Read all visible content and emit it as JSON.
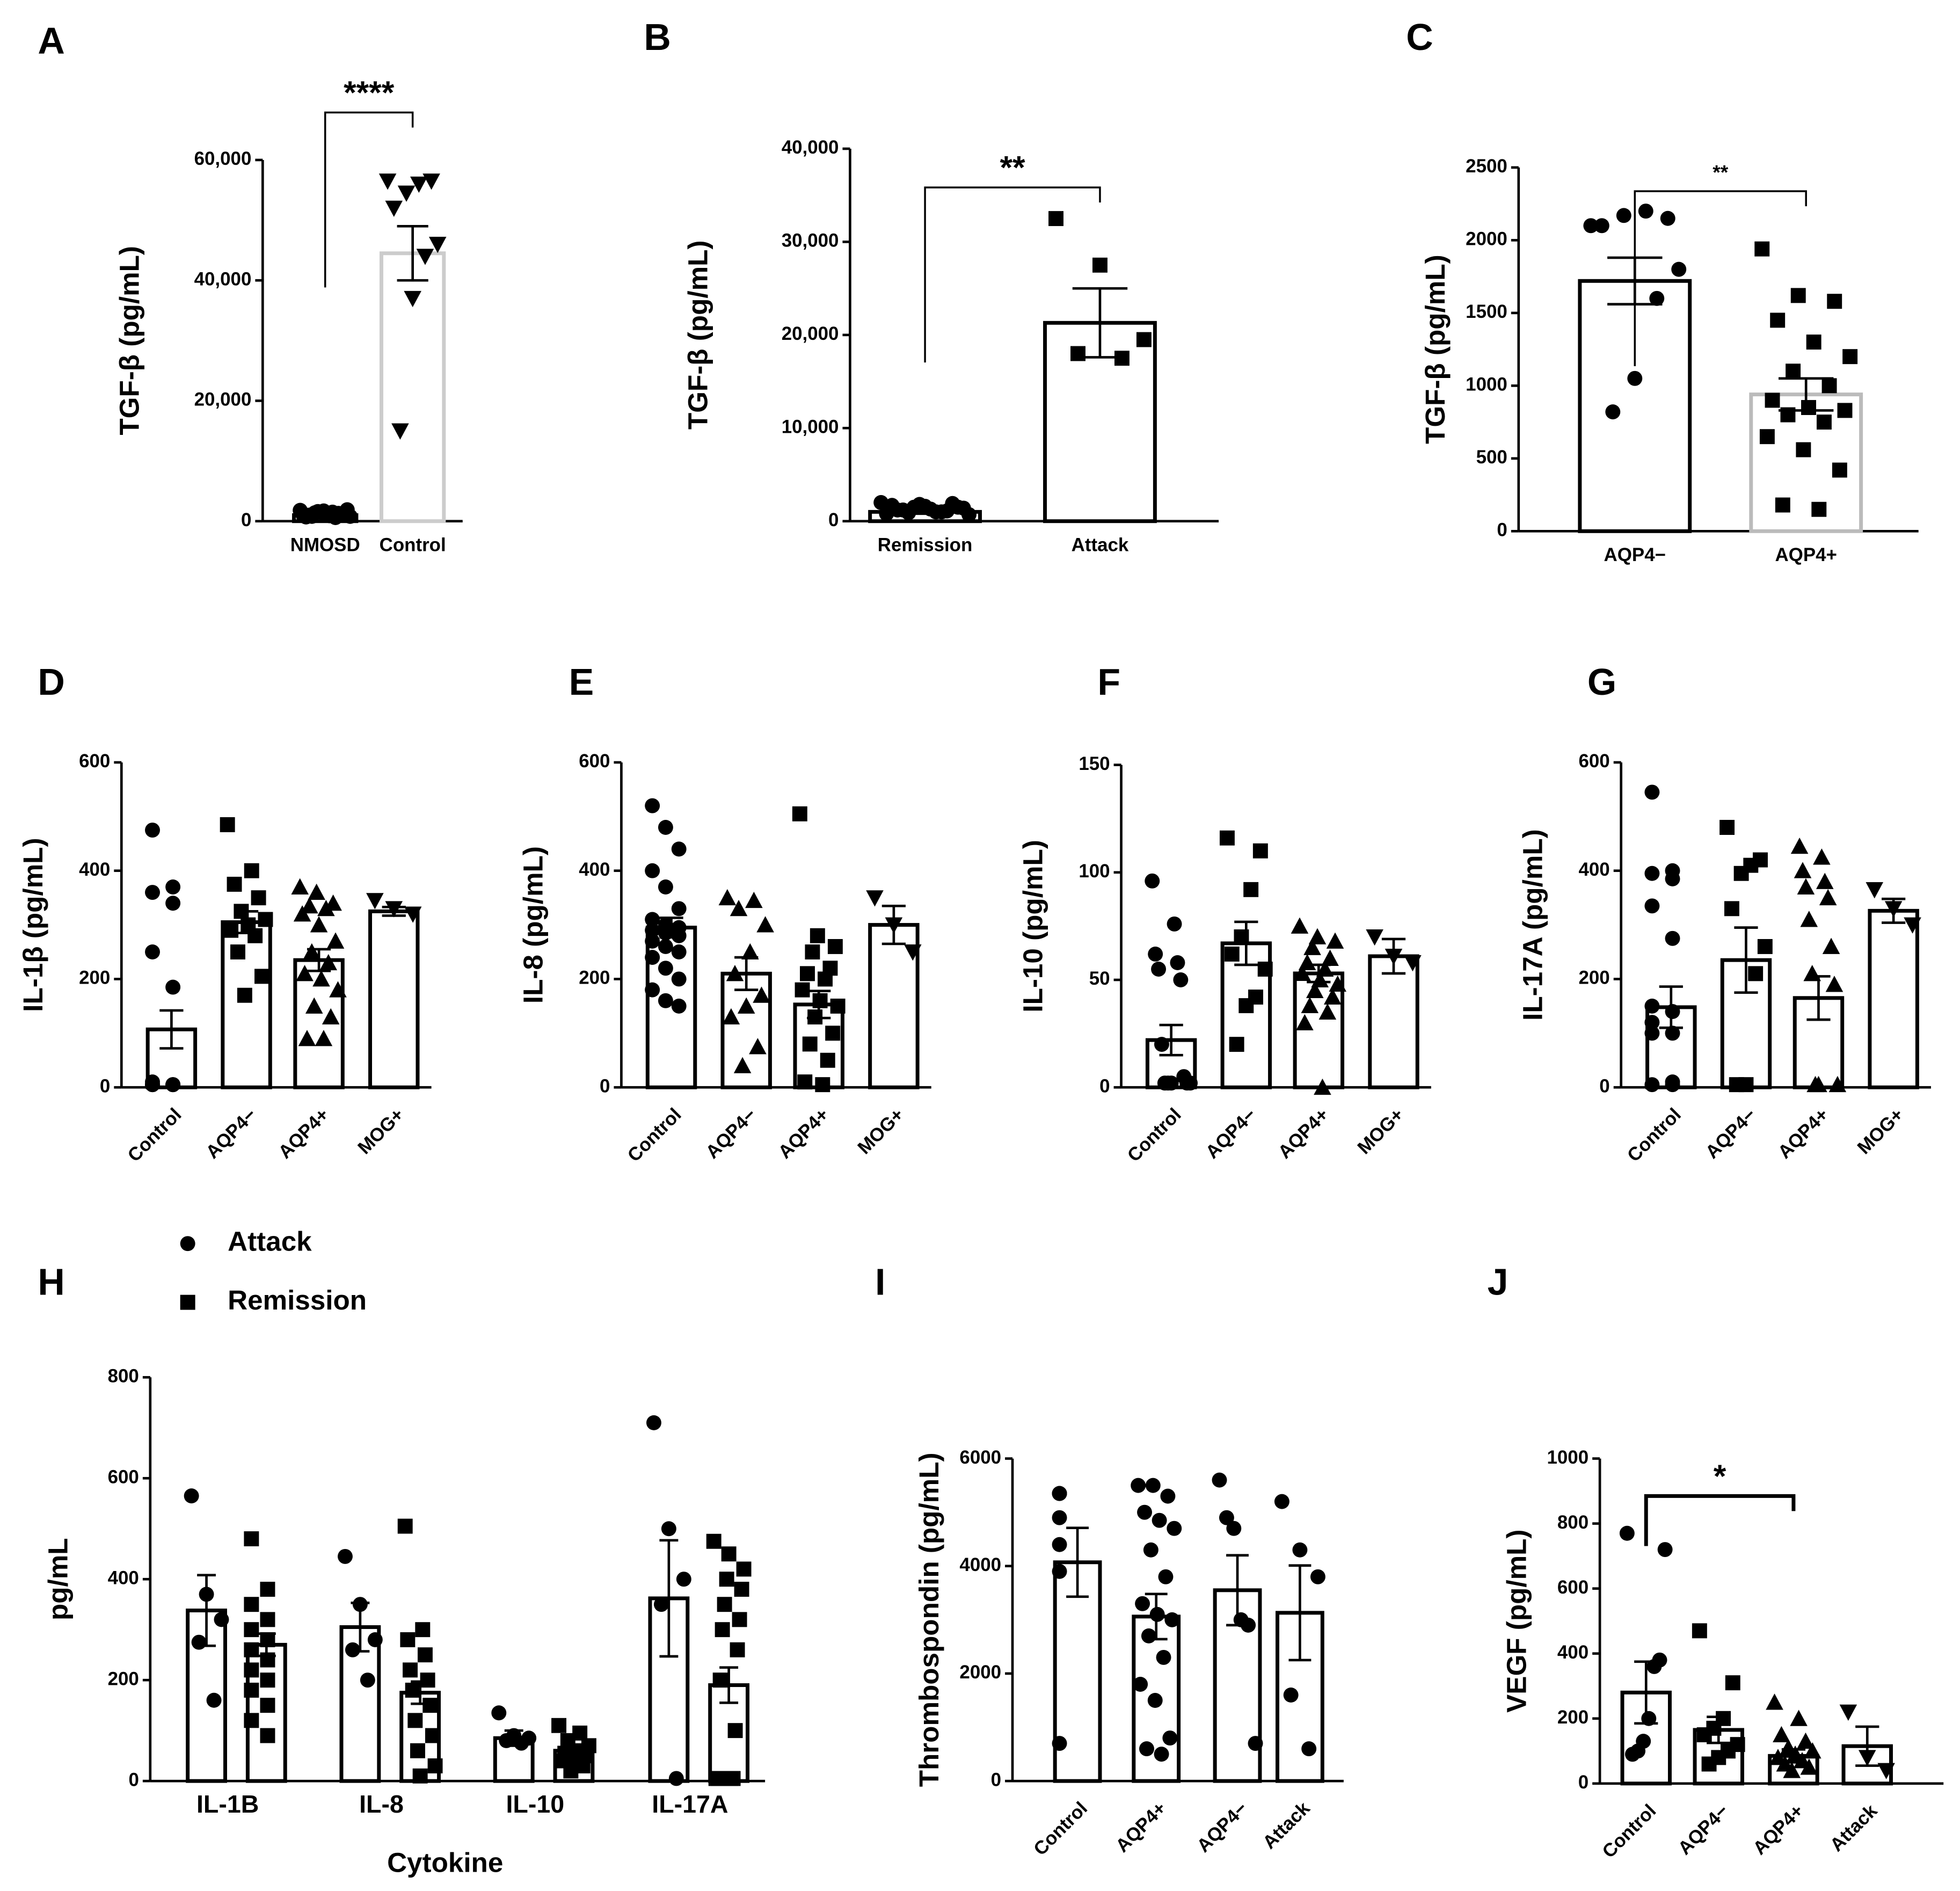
{
  "chart_data": [
    {
      "type": "bar",
      "label": "A",
      "ylabel": "TGF-β (pg/mL)",
      "annotation": "****",
      "categories": [
        "NMOSD",
        "Control"
      ],
      "edge_colors": [
        "#000",
        "#cccccc"
      ],
      "ylim": [
        0,
        60000
      ],
      "yticks": [
        0,
        {
          "value": 20000,
          "label": "20,000"
        },
        {
          "value": 40000,
          "label": "40,000"
        },
        {
          "value": 60000,
          "label": "60,000"
        }
      ],
      "series": [
        {
          "values": [
            1000,
            44500
          ],
          "errors": [
            300,
            4500
          ],
          "markers": [
            "circle",
            "tri-down"
          ],
          "points": [
            [
              1800,
              1500,
              1200,
              1000,
              900,
              800,
              1600,
              1300,
              700,
              1100,
              1900,
              1400,
              600,
              1000,
              1700,
              1200,
              800,
              1500
            ],
            [
              56500,
              56500,
              56000,
              54500,
              52000,
              46000,
              44000,
              37000,
              15000
            ]
          ]
        }
      ]
    },
    {
      "type": "bar",
      "label": "B",
      "ylabel": "TGF-β (pg/mL)",
      "annotation": "**",
      "categories": [
        "Remission",
        "Attack"
      ],
      "edge_colors": [
        "#000",
        "#000"
      ],
      "ylim": [
        0,
        40000
      ],
      "yticks": [
        0,
        {
          "value": 10000,
          "label": "10,000"
        },
        {
          "value": 20000,
          "label": "20,000"
        },
        {
          "value": 30000,
          "label": "30,000"
        },
        {
          "value": 40000,
          "label": "40,000"
        }
      ],
      "series": [
        {
          "values": [
            1000,
            21300
          ],
          "errors": [
            200,
            3700
          ],
          "markers": [
            "circle",
            "square"
          ],
          "points": [
            [
              2000,
              1800,
              1500,
              1200,
              1000,
              800,
              1600,
              1400,
              900,
              1100,
              1700,
              1300,
              700,
              1500,
              1900,
              1200,
              1000
            ],
            [
              32500,
              27500,
              19500,
              18000,
              17500
            ]
          ]
        }
      ]
    },
    {
      "type": "bar",
      "label": "C",
      "ylabel": "TGF-β (pg/mL)",
      "annotation": "**",
      "categories": [
        "AQP4−",
        "AQP4+"
      ],
      "edge_colors": [
        "#000",
        "#bbbbbb"
      ],
      "ylim": [
        0,
        2500
      ],
      "yticks": [
        0,
        500,
        1000,
        1500,
        2000,
        2500
      ],
      "series": [
        {
          "values": [
            1720,
            940
          ],
          "errors": [
            160,
            110
          ],
          "markers": [
            "circle",
            "square"
          ],
          "points": [
            [
              2100,
              2150,
              2200,
              2170,
              2100,
              1800,
              1600,
              1050,
              820
            ],
            [
              1940,
              1620,
              1580,
              1450,
              1300,
              1200,
              1100,
              1000,
              900,
              850,
              830,
              800,
              750,
              650,
              560,
              420,
              180,
              150
            ]
          ]
        }
      ]
    },
    {
      "type": "bar",
      "label": "D",
      "ylabel": "IL-1β (pg/mL)",
      "categories": [
        "Control",
        "AQP4−",
        "AQP4+",
        "MOG+"
      ],
      "ylim": [
        0,
        600
      ],
      "yticks": [
        0,
        200,
        400,
        600
      ],
      "series": [
        {
          "values": [
            107,
            305,
            235,
            325
          ],
          "errors": [
            35,
            20,
            20,
            8
          ],
          "markers": [
            "circle",
            "square",
            "triangle",
            "tri-down"
          ],
          "points": [
            [
              475,
              370,
              360,
              340,
              250,
              185,
              10,
              5,
              5,
              5,
              5,
              5,
              5,
              5
            ],
            [
              485,
              400,
              375,
              350,
              325,
              310,
              300,
              290,
              280,
              250,
              205,
              170
            ],
            [
              370,
              360,
              340,
              335,
              330,
              320,
              300,
              270,
              250,
              230,
              210,
              200,
              180,
              150,
              130,
              90,
              90
            ],
            [
              345,
              330,
              320
            ]
          ]
        }
      ]
    },
    {
      "type": "bar",
      "label": "E",
      "ylabel": "IL-8 (pg/mL)",
      "categories": [
        "Control",
        "AQP4−",
        "AQP4+",
        "MOG+"
      ],
      "ylim": [
        0,
        600
      ],
      "yticks": [
        0,
        200,
        400,
        600
      ],
      "series": [
        {
          "values": [
            295,
            210,
            153,
            300
          ],
          "errors": [
            18,
            30,
            25,
            35
          ],
          "markers": [
            "circle",
            "triangle",
            "square",
            "tri-down"
          ],
          "points": [
            [
              520,
              480,
              440,
              400,
              370,
              330,
              310,
              300,
              295,
              290,
              285,
              280,
              270,
              260,
              250,
              240,
              220,
              200,
              180,
              160,
              150
            ],
            [
              350,
              345,
              330,
              300,
              250,
              210,
              170,
              150,
              130,
              75,
              40
            ],
            [
              505,
              280,
              260,
              250,
              220,
              210,
              200,
              180,
              160,
              150,
              130,
              100,
              80,
              50,
              10,
              5
            ],
            [
              350,
              300,
              250
            ]
          ]
        }
      ]
    },
    {
      "type": "bar",
      "label": "F",
      "ylabel": "IL-10 (pg/mL)",
      "categories": [
        "Control",
        "AQP4−",
        "AQP4+",
        "MOG+"
      ],
      "ylim": [
        0,
        150
      ],
      "yticks": [
        0,
        50,
        100,
        150
      ],
      "series": [
        {
          "values": [
            22,
            67,
            53,
            61
          ],
          "errors": [
            7,
            10,
            4,
            8
          ],
          "markers": [
            "circle",
            "square",
            "triangle",
            "tri-down"
          ],
          "points": [
            [
              96,
              76,
              62,
              58,
              55,
              50,
              20,
              5,
              2,
              2,
              2,
              2,
              2
            ],
            [
              116,
              110,
              92,
              70,
              62,
              55,
              42,
              38,
              20
            ],
            [
              75,
              70,
              68,
              65,
              60,
              58,
              55,
              53,
              50,
              48,
              45,
              42,
              38,
              35,
              30,
              0
            ],
            [
              70,
              61,
              58
            ]
          ]
        }
      ]
    },
    {
      "type": "bar",
      "label": "G",
      "ylabel": "IL-17A (pg/mL)",
      "categories": [
        "Control",
        "AQP4−",
        "AQP4+",
        "MOG+"
      ],
      "ylim": [
        0,
        600
      ],
      "yticks": [
        0,
        200,
        400,
        600
      ],
      "series": [
        {
          "values": [
            148,
            235,
            165,
            326
          ],
          "errors": [
            38,
            60,
            40,
            22
          ],
          "markers": [
            "circle",
            "square",
            "triangle",
            "tri-down"
          ],
          "points": [
            [
              545,
              400,
              395,
              385,
              335,
              275,
              150,
              140,
              120,
              100,
              100,
              10,
              5,
              5
            ],
            [
              480,
              420,
              410,
              395,
              330,
              260,
              210,
              5,
              5
            ],
            [
              445,
              425,
              400,
              380,
              370,
              350,
              310,
              260,
              210,
              190,
              5,
              5,
              5
            ],
            [
              365,
              330,
              300
            ]
          ]
        }
      ]
    },
    {
      "type": "bar",
      "label": "H",
      "ylabel": "pg/mL",
      "xlabel": "Cytokine",
      "categories": [
        "IL-1B",
        "IL-8",
        "IL-10",
        "IL-17A"
      ],
      "ylim": [
        0,
        800
      ],
      "yticks": [
        0,
        200,
        400,
        600,
        800
      ],
      "series": [
        {
          "name": "Attack",
          "values": [
            338,
            305,
            85,
            362
          ],
          "errors": [
            70,
            48,
            15,
            115
          ],
          "markers": [
            "circle",
            "circle",
            "circle",
            "circle"
          ],
          "points": [
            [
              565,
              370,
              320,
              275,
              160
            ],
            [
              445,
              350,
              280,
              260,
              200
            ],
            [
              135,
              90,
              85,
              80,
              75
            ],
            [
              710,
              500,
              400,
              350,
              5
            ]
          ]
        },
        {
          "name": "Remission",
          "values": [
            270,
            175,
            60,
            190
          ],
          "errors": [
            22,
            22,
            6,
            35
          ],
          "markers": [
            "square",
            "square",
            "square",
            "square"
          ],
          "points": [
            [
              480,
              380,
              350,
              320,
              300,
              280,
              260,
              240,
              220,
              200,
              180,
              150,
              120,
              90
            ],
            [
              505,
              300,
              280,
              250,
              220,
              200,
              180,
              150,
              120,
              90,
              60,
              30,
              10
            ],
            [
              110,
              95,
              80,
              70,
              60,
              55,
              50,
              45,
              40,
              30,
              20
            ],
            [
              475,
              450,
              420,
              400,
              380,
              350,
              320,
              300,
              260,
              200,
              100,
              5,
              5,
              5,
              5
            ]
          ]
        }
      ]
    },
    {
      "type": "bar",
      "label": "I",
      "ylabel": "Thrombospondin (pg/mL)",
      "categories": [
        "Control",
        "AQP4+",
        "AQP4−",
        "Attack"
      ],
      "ylim": [
        0,
        6000
      ],
      "yticks": [
        0,
        2000,
        4000,
        6000
      ],
      "series": [
        {
          "values": [
            4070,
            3060,
            3550,
            3130
          ],
          "errors": [
            640,
            420,
            650,
            880
          ],
          "markers": [
            "circle",
            "circle",
            "circle",
            "circle"
          ],
          "points": [
            [
              5350,
              5350,
              5350,
              4900,
              4400,
              3900,
              700
            ],
            [
              5500,
              5500,
              5300,
              5000,
              4850,
              4700,
              4300,
              3800,
              3300,
              3100,
              3000,
              2700,
              2300,
              1800,
              1500,
              800,
              600,
              500
            ],
            [
              5600,
              4900,
              4700,
              3000,
              2900,
              700
            ],
            [
              5200,
              4300,
              3800,
              1600,
              600
            ]
          ]
        }
      ]
    },
    {
      "type": "bar",
      "label": "J",
      "ylabel": "VEGF (pg/mL)",
      "annotation": "*",
      "categories": [
        "Control",
        "AQP4−",
        "AQP4+",
        "Attack"
      ],
      "ylim": [
        0,
        1000
      ],
      "yticks": [
        0,
        200,
        400,
        600,
        800,
        1000
      ],
      "series": [
        {
          "values": [
            280,
            165,
            85,
            115
          ],
          "errors": [
            95,
            40,
            20,
            60
          ],
          "markers": [
            "circle",
            "square",
            "triangle",
            "tri-down"
          ],
          "points": [
            [
              770,
              720,
              380,
              360,
              200,
              130,
              100,
              90
            ],
            [
              470,
              310,
              200,
              170,
              150,
              120,
              100,
              80,
              60
            ],
            [
              250,
              200,
              150,
              130,
              110,
              100,
              90,
              80,
              70,
              60,
              50,
              40
            ],
            [
              220,
              80,
              40
            ]
          ]
        }
      ]
    }
  ]
}
